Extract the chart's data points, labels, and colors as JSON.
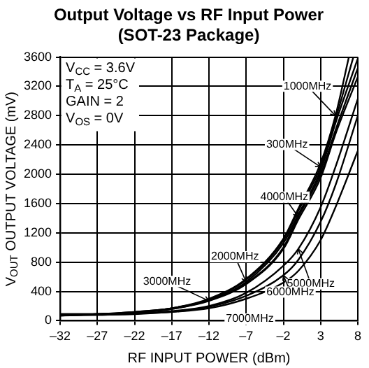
{
  "chart_data": {
    "type": "line",
    "title": "Output Voltage vs RF Input Power",
    "subtitle": "(SOT-23 Package)",
    "xlabel": "RF INPUT POWER (dBm)",
    "ylabel": "V$_{OUT}$ OUTPUT VOLTAGE (mV)",
    "series": [
      {
        "name": "300MHz",
        "color": "#000000",
        "x": [
          -32,
          -27,
          -22,
          -17,
          -12,
          -7,
          -2,
          0,
          3,
          5,
          7.4
        ],
        "values": [
          80,
          90,
          120,
          170,
          290,
          560,
          1100,
          1500,
          2100,
          2750,
          3600
        ]
      },
      {
        "name": "1000MHz",
        "color": "#000000",
        "x": [
          -32,
          -27,
          -22,
          -17,
          -12,
          -7,
          -2,
          0,
          3,
          5,
          6.8
        ],
        "values": [
          90,
          90,
          120,
          170,
          300,
          570,
          1120,
          1530,
          2150,
          2800,
          3600
        ]
      },
      {
        "name": "2000MHz",
        "color": "#000000",
        "x": [
          -32,
          -27,
          -22,
          -17,
          -12,
          -7,
          -2,
          0,
          3,
          5,
          8
        ],
        "values": [
          70,
          90,
          110,
          170,
          280,
          530,
          1060,
          1450,
          2050,
          2700,
          3580
        ]
      },
      {
        "name": "3000MHz",
        "color": "#000000",
        "x": [
          -32,
          -27,
          -22,
          -17,
          -12,
          -7,
          -2,
          0,
          3,
          5,
          8
        ],
        "values": [
          80,
          90,
          110,
          160,
          270,
          500,
          980,
          1380,
          1950,
          2550,
          3330
        ]
      },
      {
        "name": "4000MHz",
        "color": "#000000",
        "x": [
          -32,
          -27,
          -22,
          -17,
          -12,
          -7,
          -2,
          0,
          3,
          5,
          8
        ],
        "values": [
          90,
          90,
          110,
          160,
          280,
          510,
          1000,
          1420,
          2000,
          2600,
          3450
        ]
      },
      {
        "name": "5000MHz",
        "color": "#000000",
        "x": [
          -32,
          -27,
          -22,
          -17,
          -12,
          -7,
          -2,
          0,
          3,
          5,
          8
        ],
        "values": [
          70,
          90,
          100,
          130,
          200,
          380,
          750,
          980,
          1550,
          2100,
          3030
        ]
      },
      {
        "name": "6000MHz",
        "color": "#000000",
        "x": [
          -32,
          -27,
          -22,
          -17,
          -12,
          -7,
          -2,
          0,
          3,
          5,
          8
        ],
        "values": [
          80,
          80,
          100,
          120,
          190,
          340,
          620,
          830,
          1350,
          1850,
          2800
        ]
      },
      {
        "name": "7000MHz",
        "color": "#000000",
        "x": [
          -32,
          -27,
          -22,
          -17,
          -12,
          -7,
          -2,
          0,
          3,
          5,
          8
        ],
        "values": [
          70,
          80,
          90,
          120,
          170,
          300,
          520,
          680,
          1100,
          1550,
          2320
        ]
      }
    ],
    "xlim": [
      -32,
      8
    ],
    "xticks": [
      {
        "value": -32,
        "label": "–32"
      },
      {
        "value": -27,
        "label": "–27"
      },
      {
        "value": -22,
        "label": "–22"
      },
      {
        "value": -17,
        "label": "–17"
      },
      {
        "value": -12,
        "label": "–12"
      },
      {
        "value": -7,
        "label": "–7"
      },
      {
        "value": -2,
        "label": "–2"
      },
      3,
      8
    ],
    "ylim": [
      0,
      3600
    ],
    "yticks": [
      0,
      400,
      800,
      1200,
      1600,
      2000,
      2400,
      2800,
      3200,
      3600
    ],
    "annotations": [
      "V$_{CC}$ = 3.6V",
      "T$_{A}$ = 25°C",
      "GAIN = 2",
      "V$_{OS}$ = 0V"
    ],
    "grid": true,
    "marker": "none",
    "line_style": "solid"
  }
}
